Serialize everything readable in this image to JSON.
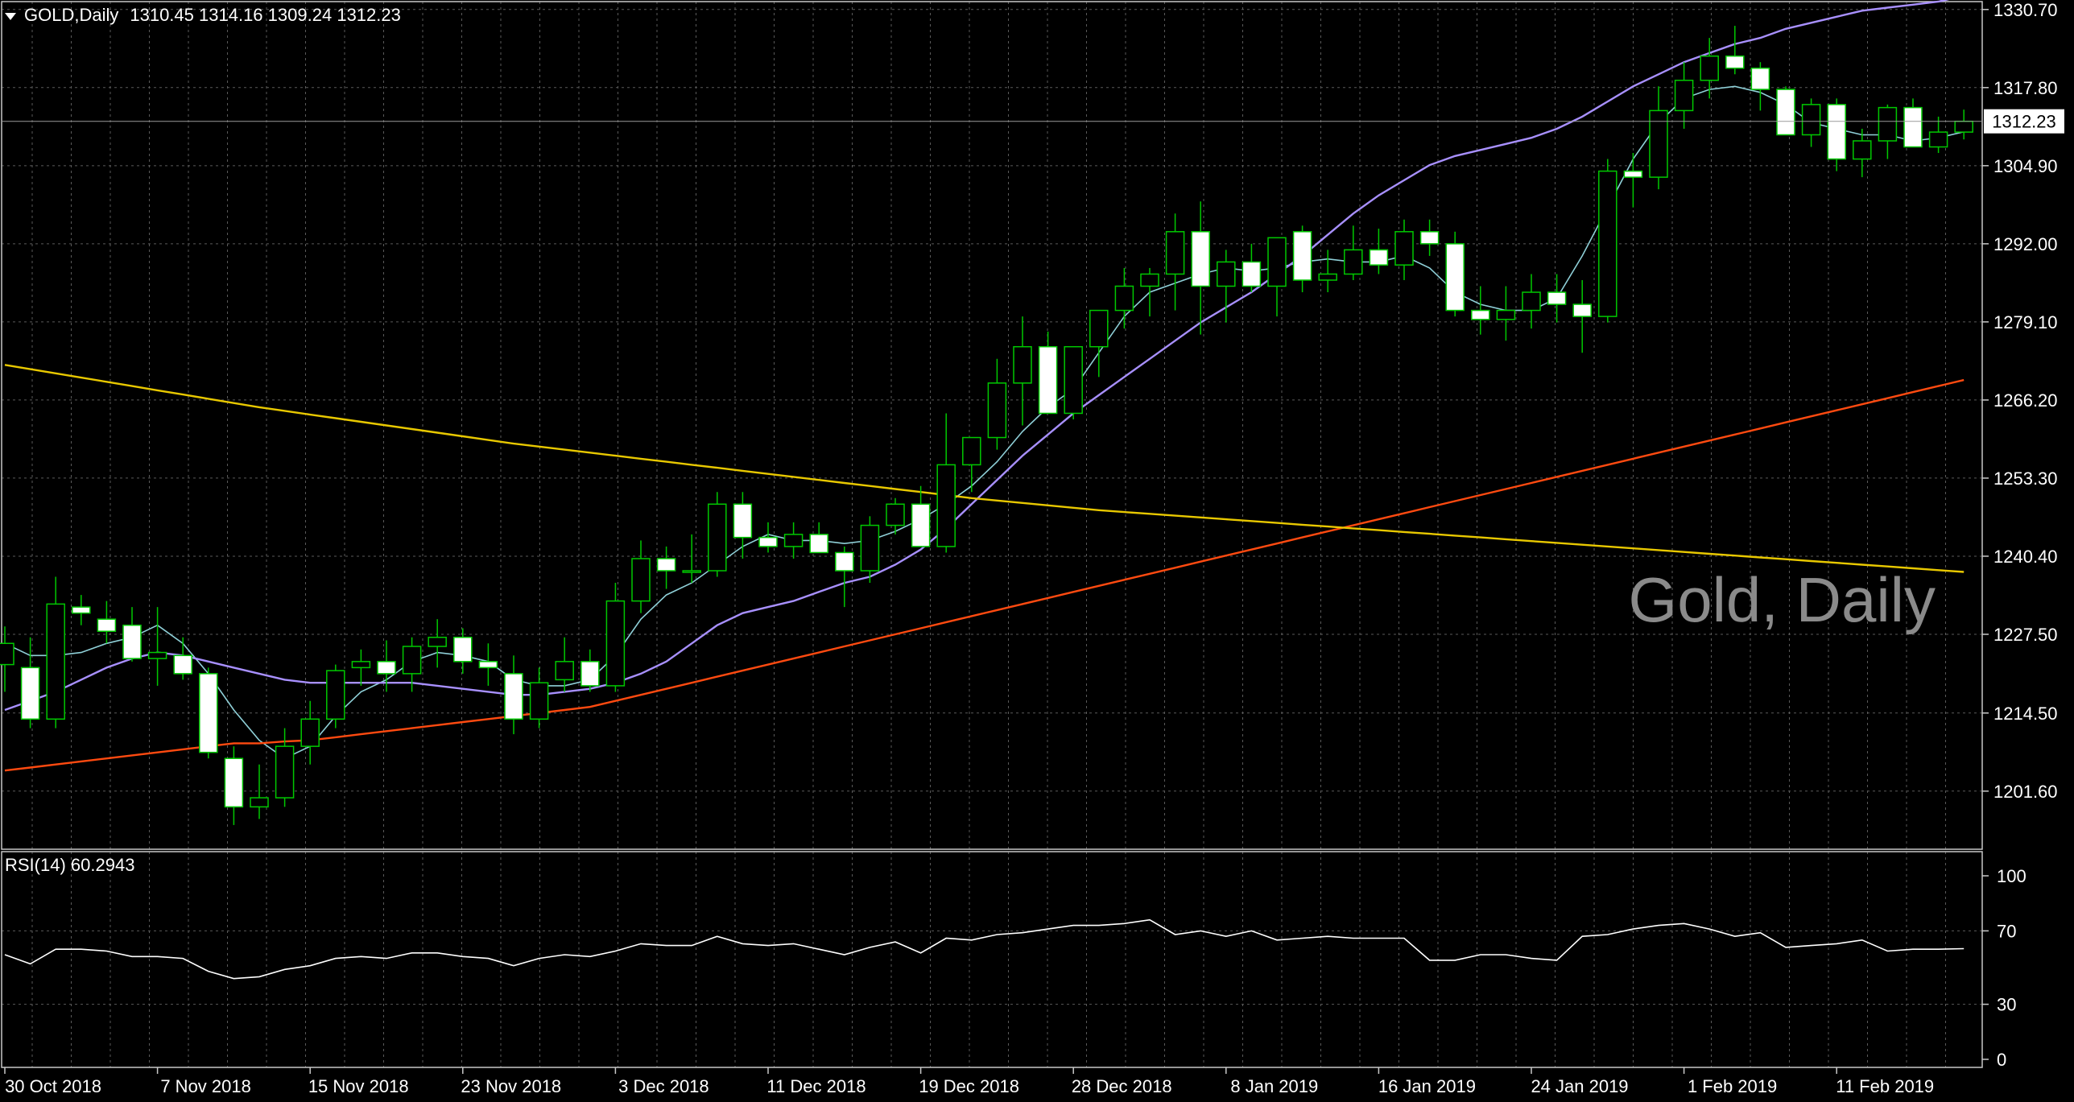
{
  "header": {
    "symbol": "GOLD,Daily",
    "open": "1310.45",
    "high": "1314.16",
    "low": "1309.24",
    "close": "1312.23"
  },
  "watermark": "Gold, Daily",
  "colors": {
    "background": "#000000",
    "grid": "#5a5a5a",
    "bull_candle": "#000000",
    "bear_candle": "#ffffff",
    "candle_outline": "#00c800",
    "ma_fast": "#8fd0d8",
    "ma_mid": "#a890ff",
    "ma_slow": "#ff4a10",
    "ma_long": "#e8c800",
    "rsi": "#ffffff"
  },
  "chart_data": [
    {
      "type": "candlestick",
      "title": "GOLD,Daily",
      "y_ticks": [
        "1330.70",
        "1317.80",
        "1304.90",
        "1292.00",
        "1279.10",
        "1266.20",
        "1253.30",
        "1240.40",
        "1227.50",
        "1214.50",
        "1201.60"
      ],
      "ylim": [
        1192.0,
        1332.0
      ],
      "price_tag": "1312.23",
      "x_labels": [
        {
          "index": 0,
          "label": "30 Oct 2018"
        },
        {
          "index": 6,
          "label": "7 Nov 2018"
        },
        {
          "index": 12,
          "label": "15 Nov 2018"
        },
        {
          "index": 18,
          "label": "23 Nov 2018"
        },
        {
          "index": 24,
          "label": "3 Dec 2018"
        },
        {
          "index": 30,
          "label": "11 Dec 2018"
        },
        {
          "index": 36,
          "label": "19 Dec 2018"
        },
        {
          "index": 42,
          "label": "28 Dec 2018"
        },
        {
          "index": 48,
          "label": "8 Jan 2019"
        },
        {
          "index": 54,
          "label": "16 Jan 2019"
        },
        {
          "index": 60,
          "label": "24 Jan 2019"
        },
        {
          "index": 66,
          "label": "1 Feb 2019"
        },
        {
          "index": 72,
          "label": "11 Feb 2019"
        }
      ],
      "candles": [
        [
          1222.5,
          1228.8,
          1218.0,
          1226.0
        ],
        [
          1222.0,
          1227.0,
          1212.0,
          1213.5
        ],
        [
          1213.5,
          1237.0,
          1212.0,
          1232.5
        ],
        [
          1232.0,
          1234.0,
          1229.0,
          1231.0
        ],
        [
          1230.0,
          1233.0,
          1226.0,
          1228.0
        ],
        [
          1229.0,
          1232.0,
          1223.0,
          1223.5
        ],
        [
          1223.5,
          1232.0,
          1219.0,
          1224.5
        ],
        [
          1224.0,
          1227.0,
          1220.0,
          1221.0
        ],
        [
          1221.0,
          1222.0,
          1207.0,
          1208.0
        ],
        [
          1207.0,
          1209.0,
          1196.0,
          1199.0
        ],
        [
          1199.0,
          1206.0,
          1197.0,
          1200.5
        ],
        [
          1200.5,
          1212.0,
          1199.0,
          1209.0
        ],
        [
          1209.0,
          1216.5,
          1206.0,
          1213.5
        ],
        [
          1213.5,
          1222.5,
          1212.0,
          1221.5
        ],
        [
          1222.0,
          1225.0,
          1219.0,
          1223.0
        ],
        [
          1223.0,
          1226.5,
          1218.0,
          1221.0
        ],
        [
          1221.0,
          1227.0,
          1218.0,
          1225.5
        ],
        [
          1225.5,
          1230.0,
          1222.0,
          1227.0
        ],
        [
          1227.0,
          1228.5,
          1221.0,
          1223.0
        ],
        [
          1223.0,
          1226.0,
          1219.0,
          1222.0
        ],
        [
          1221.0,
          1224.0,
          1211.0,
          1213.5
        ],
        [
          1213.5,
          1222.0,
          1212.0,
          1219.5
        ],
        [
          1220.0,
          1227.0,
          1218.0,
          1223.0
        ],
        [
          1223.0,
          1225.0,
          1218.0,
          1219.0
        ],
        [
          1219.0,
          1236.0,
          1218.0,
          1233.0
        ],
        [
          1233.0,
          1243.0,
          1231.0,
          1240.0
        ],
        [
          1240.0,
          1242.0,
          1235.0,
          1238.0
        ],
        [
          1238.0,
          1244.0,
          1236.0,
          1238.0
        ],
        [
          1238.0,
          1251.0,
          1237.0,
          1249.0
        ],
        [
          1249.0,
          1251.0,
          1240.0,
          1243.5
        ],
        [
          1243.5,
          1246.0,
          1241.0,
          1242.0
        ],
        [
          1242.0,
          1246.0,
          1240.0,
          1244.0
        ],
        [
          1244.0,
          1246.0,
          1242.0,
          1241.0
        ],
        [
          1241.0,
          1242.0,
          1232.0,
          1238.0
        ],
        [
          1238.0,
          1247.0,
          1236.0,
          1245.5
        ],
        [
          1245.5,
          1250.0,
          1244.0,
          1249.0
        ],
        [
          1249.0,
          1252.0,
          1242.0,
          1242.0
        ],
        [
          1242.0,
          1264.0,
          1241.0,
          1255.5
        ],
        [
          1255.5,
          1259.0,
          1251.0,
          1260.0
        ],
        [
          1260.0,
          1273.0,
          1258.0,
          1269.0
        ],
        [
          1269.0,
          1280.0,
          1262.0,
          1275.0
        ],
        [
          1275.0,
          1277.5,
          1265.0,
          1264.0
        ],
        [
          1264.0,
          1275.0,
          1263.0,
          1275.0
        ],
        [
          1275.0,
          1280.0,
          1270.0,
          1281.0
        ],
        [
          1281.0,
          1288.0,
          1278.0,
          1285.0
        ],
        [
          1285.0,
          1288.0,
          1280.0,
          1287.0
        ],
        [
          1287.0,
          1297.0,
          1281.0,
          1294.0
        ],
        [
          1294.0,
          1299.0,
          1277.0,
          1285.0
        ],
        [
          1285.0,
          1291.0,
          1279.0,
          1289.0
        ],
        [
          1289.0,
          1292.0,
          1284.0,
          1285.0
        ],
        [
          1285.0,
          1293.0,
          1280.0,
          1293.0
        ],
        [
          1294.0,
          1295.0,
          1284.0,
          1286.0
        ],
        [
          1286.0,
          1291.0,
          1284.0,
          1287.0
        ],
        [
          1287.0,
          1295.0,
          1286.0,
          1291.0
        ],
        [
          1291.0,
          1294.5,
          1287.0,
          1288.5
        ],
        [
          1288.5,
          1296.0,
          1286.0,
          1294.0
        ],
        [
          1294.0,
          1296.0,
          1290.0,
          1292.0
        ],
        [
          1292.0,
          1294.0,
          1280.0,
          1281.0
        ],
        [
          1281.0,
          1285.0,
          1277.0,
          1279.5
        ],
        [
          1279.5,
          1285.0,
          1276.0,
          1281.0
        ],
        [
          1281.0,
          1287.0,
          1278.0,
          1284.0
        ],
        [
          1284.0,
          1287.0,
          1279.0,
          1282.0
        ],
        [
          1282.0,
          1286.0,
          1274.0,
          1280.0
        ],
        [
          1280.0,
          1306.0,
          1279.0,
          1304.0
        ],
        [
          1304.0,
          1307.0,
          1298.0,
          1303.0
        ],
        [
          1303.0,
          1318.0,
          1301.0,
          1314.0
        ],
        [
          1314.0,
          1322.0,
          1311.0,
          1319.0
        ],
        [
          1319.0,
          1326.0,
          1316.0,
          1323.0
        ],
        [
          1323.0,
          1328.0,
          1320.0,
          1321.0
        ],
        [
          1321.0,
          1322.0,
          1314.0,
          1317.5
        ],
        [
          1317.5,
          1318.0,
          1310.0,
          1310.0
        ],
        [
          1310.0,
          1316.0,
          1308.0,
          1315.0
        ],
        [
          1315.0,
          1316.0,
          1304.0,
          1306.0
        ],
        [
          1306.0,
          1311.0,
          1303.0,
          1309.0
        ],
        [
          1309.0,
          1315.0,
          1306.0,
          1314.5
        ],
        [
          1314.5,
          1316.0,
          1308.0,
          1308.0
        ],
        [
          1308.0,
          1313.0,
          1307.0,
          1310.45
        ],
        [
          1310.45,
          1314.16,
          1309.24,
          1312.23
        ]
      ],
      "indicators": [
        {
          "name": "MA fast",
          "color": "#8fd0d8",
          "values": [
            1226.0,
            1224.0,
            1224.0,
            1224.5,
            1226.0,
            1227.0,
            1229.0,
            1226.0,
            1221.0,
            1215.0,
            1210.0,
            1207.0,
            1209.0,
            1214.0,
            1218.0,
            1220.0,
            1223.0,
            1224.5,
            1224.0,
            1223.0,
            1220.0,
            1219.0,
            1219.0,
            1220.0,
            1224.0,
            1230.0,
            1234.0,
            1236.0,
            1239.0,
            1242.0,
            1244.0,
            1243.0,
            1243.0,
            1242.5,
            1243.0,
            1244.5,
            1246.5,
            1249.0,
            1252.0,
            1256.0,
            1261.0,
            1265.0,
            1268.0,
            1274.0,
            1280.0,
            1284.0,
            1285.5,
            1287.0,
            1288.0,
            1287.5,
            1288.0,
            1289.0,
            1289.5,
            1289.0,
            1289.0,
            1290.0,
            1288.0,
            1284.0,
            1282.0,
            1281.0,
            1281.0,
            1283.0,
            1290.0,
            1298.0,
            1306.0,
            1312.0,
            1316.0,
            1317.5,
            1318.0,
            1317.0,
            1315.0,
            1312.0,
            1311.0,
            1310.0,
            1310.0,
            1309.0,
            1309.5,
            1310.5
          ]
        },
        {
          "name": "MA mid",
          "color": "#a890ff",
          "values": [
            1215.0,
            1216.5,
            1218.0,
            1220.0,
            1222.0,
            1223.5,
            1224.5,
            1224.0,
            1223.0,
            1222.0,
            1221.0,
            1220.0,
            1219.5,
            1219.5,
            1219.5,
            1219.5,
            1219.5,
            1219.0,
            1218.5,
            1218.0,
            1217.5,
            1217.5,
            1218.0,
            1218.5,
            1219.5,
            1221.0,
            1223.0,
            1226.0,
            1229.0,
            1231.0,
            1232.0,
            1233.0,
            1234.5,
            1236.0,
            1237.0,
            1239.0,
            1241.5,
            1245.0,
            1249.0,
            1253.0,
            1257.0,
            1260.5,
            1264.0,
            1267.0,
            1270.0,
            1273.0,
            1276.0,
            1279.0,
            1281.5,
            1284.0,
            1287.0,
            1290.0,
            1293.5,
            1297.0,
            1300.0,
            1302.5,
            1305.0,
            1306.5,
            1307.5,
            1308.5,
            1309.5,
            1311.0,
            1313.0,
            1315.5,
            1318.0,
            1320.0,
            1322.0,
            1323.5,
            1325.0,
            1326.0,
            1327.5,
            1328.5,
            1329.5,
            1330.5,
            1331.0,
            1331.5,
            1332.0,
            1333.0
          ]
        },
        {
          "name": "MA slow",
          "color": "#ff4a10",
          "values": [
            1205.0,
            1205.5,
            1206.0,
            1206.5,
            1207.0,
            1207.5,
            1208.0,
            1208.5,
            1209.0,
            1209.5,
            1209.5,
            1209.8,
            1210.0,
            1210.5,
            1211.0,
            1211.5,
            1212.0,
            1212.5,
            1213.0,
            1213.5,
            1214.0,
            1214.5,
            1215.0,
            1215.5,
            1216.5,
            1217.5,
            1218.5,
            1219.5,
            1220.5,
            1221.5,
            1222.5,
            1223.5,
            1224.5,
            1225.5,
            1226.5,
            1227.5,
            1228.5,
            1229.5,
            1230.5,
            1231.5,
            1232.5,
            1233.5,
            1234.5,
            1235.5,
            1236.5,
            1237.5,
            1238.5,
            1239.5,
            1240.5,
            1241.5,
            1242.5,
            1243.5,
            1244.5,
            1245.5,
            1246.5,
            1247.5,
            1248.5,
            1249.5,
            1250.5,
            1251.5,
            1252.5,
            1253.5,
            1254.5,
            1255.5,
            1256.5,
            1257.5,
            1258.5,
            1259.5,
            1260.5,
            1261.5,
            1262.5,
            1263.5,
            1264.5,
            1265.5,
            1266.5,
            1267.5,
            1268.5,
            1269.5
          ]
        },
        {
          "name": "MA long",
          "color": "#e8c800",
          "values": [
            1272.0,
            1271.3,
            1270.6,
            1269.9,
            1269.2,
            1268.5,
            1267.8,
            1267.1,
            1266.4,
            1265.7,
            1265.0,
            1264.4,
            1263.8,
            1263.2,
            1262.6,
            1262.0,
            1261.4,
            1260.8,
            1260.2,
            1259.6,
            1259.0,
            1258.5,
            1258.0,
            1257.5,
            1257.0,
            1256.5,
            1256.0,
            1255.5,
            1255.0,
            1254.5,
            1254.0,
            1253.5,
            1253.0,
            1252.5,
            1252.0,
            1251.5,
            1251.0,
            1250.5,
            1250.0,
            1249.6,
            1249.2,
            1248.8,
            1248.4,
            1248.0,
            1247.7,
            1247.4,
            1247.1,
            1246.8,
            1246.5,
            1246.2,
            1245.9,
            1245.6,
            1245.3,
            1245.0,
            1244.7,
            1244.4,
            1244.1,
            1243.8,
            1243.5,
            1243.2,
            1242.9,
            1242.6,
            1242.3,
            1242.0,
            1241.7,
            1241.4,
            1241.1,
            1240.8,
            1240.5,
            1240.2,
            1239.9,
            1239.6,
            1239.3,
            1239.0,
            1238.7,
            1238.4,
            1238.1,
            1237.8
          ]
        }
      ]
    },
    {
      "type": "line",
      "title": "RSI(14) 60.2943",
      "series": [
        {
          "name": "RSI(14)",
          "values": [
            57,
            52,
            60,
            60,
            59,
            56,
            56,
            55,
            48,
            44,
            45,
            49,
            51,
            55,
            56,
            55,
            58,
            58,
            56,
            55,
            51,
            55,
            57,
            56,
            59,
            63,
            62,
            62,
            67,
            63,
            62,
            63,
            60,
            57,
            61,
            64,
            58,
            66,
            65,
            68,
            69,
            71,
            73,
            73,
            74,
            76,
            68,
            70,
            67,
            70,
            65,
            66,
            67,
            66,
            66,
            66,
            54,
            54,
            57,
            57,
            55,
            54,
            67,
            68,
            71,
            73,
            74,
            71,
            67,
            69,
            61,
            62,
            63,
            65,
            59,
            60,
            60,
            60.3
          ]
        }
      ],
      "y_ticks": [
        "100",
        "70",
        "30",
        "0"
      ],
      "ylim": [
        0,
        100
      ]
    }
  ]
}
